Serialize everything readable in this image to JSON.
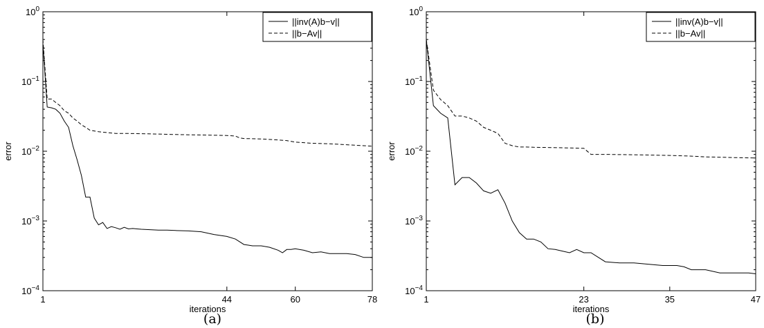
{
  "chart_data": [
    {
      "type": "line",
      "caption": "(a)",
      "xlabel": "iterations",
      "ylabel": "error",
      "xlim": [
        1,
        78
      ],
      "ylim": [
        0.0001,
        1
      ],
      "yscale": "log",
      "xticks": [
        1,
        44,
        60,
        78
      ],
      "yticks": [
        {
          "value": 0.0001,
          "base": "10",
          "exp": "−4"
        },
        {
          "value": 0.001,
          "base": "10",
          "exp": "−3"
        },
        {
          "value": 0.01,
          "base": "10",
          "exp": "−2"
        },
        {
          "value": 0.1,
          "base": "10",
          "exp": "−1"
        },
        {
          "value": 1,
          "base": "10",
          "exp": "0"
        }
      ],
      "legend": "top-right",
      "series": [
        {
          "name": "||inv(A)b−v||",
          "style": "solid",
          "x": [
            1,
            2,
            3,
            4,
            5,
            6,
            7,
            8,
            9,
            10,
            11,
            12,
            13,
            14,
            15,
            16,
            17,
            18,
            19,
            20,
            21,
            22,
            23,
            24,
            26,
            28,
            30,
            32,
            35,
            38,
            41,
            44,
            46,
            48,
            49,
            50,
            52,
            54,
            56,
            57,
            58,
            59,
            60,
            62,
            64,
            66,
            68,
            70,
            72,
            74,
            76,
            78
          ],
          "y": [
            0.35,
            0.043,
            0.042,
            0.04,
            0.035,
            0.027,
            0.022,
            0.012,
            0.0075,
            0.0045,
            0.0022,
            0.0022,
            0.0011,
            0.00088,
            0.00095,
            0.00078,
            0.00083,
            0.0008,
            0.00076,
            0.00081,
            0.00077,
            0.00078,
            0.00077,
            0.00076,
            0.00075,
            0.00074,
            0.00074,
            0.00073,
            0.00072,
            0.0007,
            0.00064,
            0.0006,
            0.00055,
            0.00046,
            0.00045,
            0.00044,
            0.00044,
            0.00042,
            0.00038,
            0.00035,
            0.00039,
            0.00039,
            0.0004,
            0.00038,
            0.00035,
            0.00036,
            0.00034,
            0.00034,
            0.00034,
            0.00033,
            0.0003,
            0.0003
          ]
        },
        {
          "name": "||b−Av||",
          "style": "dashed",
          "x": [
            1,
            2,
            3,
            4,
            5,
            6,
            7,
            8,
            9,
            10,
            11,
            12,
            14,
            16,
            18,
            20,
            25,
            30,
            35,
            40,
            44,
            46,
            47,
            48,
            52,
            56,
            58,
            60,
            64,
            68,
            72,
            76,
            78
          ],
          "y": [
            0.4,
            0.056,
            0.056,
            0.05,
            0.045,
            0.038,
            0.035,
            0.03,
            0.027,
            0.024,
            0.022,
            0.02,
            0.019,
            0.0185,
            0.018,
            0.018,
            0.0178,
            0.0175,
            0.0172,
            0.017,
            0.0168,
            0.0165,
            0.0155,
            0.0152,
            0.015,
            0.0145,
            0.0142,
            0.0135,
            0.013,
            0.0128,
            0.0124,
            0.012,
            0.0118
          ]
        }
      ]
    },
    {
      "type": "line",
      "caption": "(b)",
      "xlabel": "iterations",
      "ylabel": "error",
      "xlim": [
        1,
        47
      ],
      "ylim": [
        0.0001,
        1
      ],
      "yscale": "log",
      "xticks": [
        1,
        23,
        35,
        47
      ],
      "yticks": [
        {
          "value": 0.0001,
          "base": "10",
          "exp": "−4"
        },
        {
          "value": 0.001,
          "base": "10",
          "exp": "−3"
        },
        {
          "value": 0.01,
          "base": "10",
          "exp": "−2"
        },
        {
          "value": 0.1,
          "base": "10",
          "exp": "−1"
        },
        {
          "value": 1,
          "base": "10",
          "exp": "0"
        }
      ],
      "legend": "top-right",
      "series": [
        {
          "name": "||inv(A)b−v||",
          "style": "solid",
          "x": [
            1,
            2,
            3,
            4,
            5,
            6,
            7,
            8,
            9,
            10,
            11,
            12,
            13,
            14,
            15,
            16,
            17,
            18,
            19,
            20,
            21,
            22,
            23,
            24,
            26,
            28,
            30,
            32,
            34,
            36,
            37,
            38,
            40,
            42,
            44,
            46,
            47
          ],
          "y": [
            0.4,
            0.045,
            0.035,
            0.03,
            0.0033,
            0.0042,
            0.0042,
            0.0035,
            0.0027,
            0.0025,
            0.0028,
            0.0018,
            0.001,
            0.00068,
            0.00055,
            0.00055,
            0.0005,
            0.0004,
            0.00039,
            0.00037,
            0.00035,
            0.00039,
            0.00035,
            0.00035,
            0.00026,
            0.00025,
            0.00025,
            0.00024,
            0.00023,
            0.00023,
            0.00022,
            0.0002,
            0.0002,
            0.00018,
            0.00018,
            0.00018,
            0.000175
          ]
        },
        {
          "name": "||b−Av||",
          "style": "dashed",
          "x": [
            1,
            2,
            3,
            4,
            5,
            6,
            7,
            8,
            9,
            10,
            11,
            12,
            13,
            14,
            15,
            16,
            18,
            20,
            23,
            24,
            26,
            30,
            35,
            38,
            40,
            44,
            47
          ],
          "y": [
            0.4,
            0.075,
            0.055,
            0.045,
            0.032,
            0.032,
            0.03,
            0.027,
            0.022,
            0.02,
            0.018,
            0.013,
            0.012,
            0.0115,
            0.0115,
            0.0114,
            0.0113,
            0.0112,
            0.011,
            0.009,
            0.009,
            0.0089,
            0.0087,
            0.0085,
            0.0083,
            0.0081,
            0.008
          ]
        }
      ]
    }
  ]
}
